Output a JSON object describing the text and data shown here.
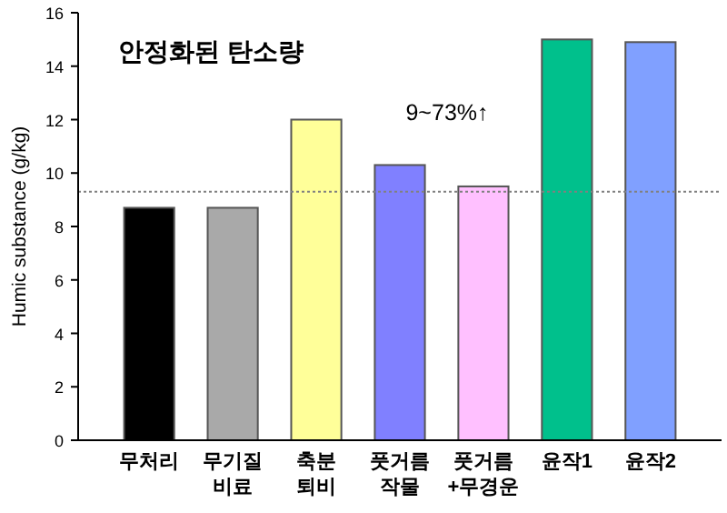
{
  "chart_data": {
    "type": "bar",
    "title": "안정화된 탄소량",
    "ylabel": "Humic substance (g/kg)",
    "categories": [
      "무처리",
      "무기질 비료",
      "축분 퇴비",
      "풋거름 작물",
      "풋거름 +무경운",
      "윤작1",
      "윤작2"
    ],
    "values": [
      8.7,
      8.7,
      12.0,
      10.3,
      9.5,
      15.0,
      14.9
    ],
    "colors": [
      "#000000",
      "#a9a9a9",
      "#ffff99",
      "#8080ff",
      "#ffc0ff",
      "#00c08c",
      "#80a0ff"
    ],
    "ylim": [
      0,
      16
    ],
    "yticks": [
      0,
      2,
      4,
      6,
      8,
      10,
      12,
      14,
      16
    ],
    "ref_lines": [
      {
        "axis": "y",
        "value": 9.3,
        "color": "#808080",
        "line_style": "dotted"
      }
    ],
    "annotations": [
      "9~73%↑"
    ],
    "grid": false
  }
}
